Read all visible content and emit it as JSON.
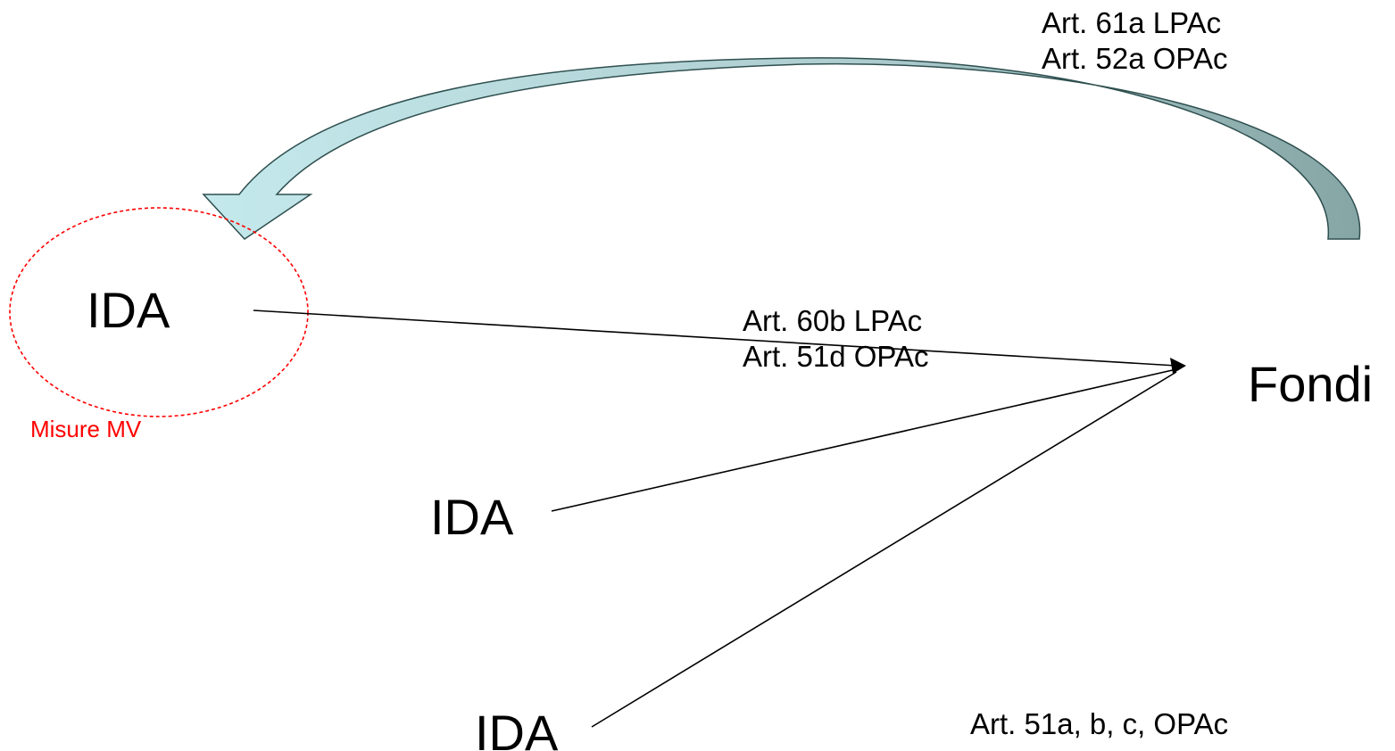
{
  "nodes": {
    "ida_top": "IDA",
    "ida_middle": "IDA",
    "ida_bottom": "IDA",
    "fondi": "Fondi"
  },
  "return_arrow_label": {
    "line1": "Art. 61a LPAc",
    "line2": "Art. 52a OPAc"
  },
  "ida_top_arrow_label": {
    "line1": "Art. 60b LPAc",
    "line2": "Art. 51d OPAc"
  },
  "lower_arrows_label": "Art. 51a, b, c, OPAc",
  "highlight_label": "Misure MV",
  "colors": {
    "text": "#000000",
    "highlight": "#ff0000",
    "return_arrow_light": "#bfe4e8",
    "return_arrow_dark": "#8faeae",
    "return_arrow_outline": "#2f4f4f",
    "connector": "#000000"
  }
}
